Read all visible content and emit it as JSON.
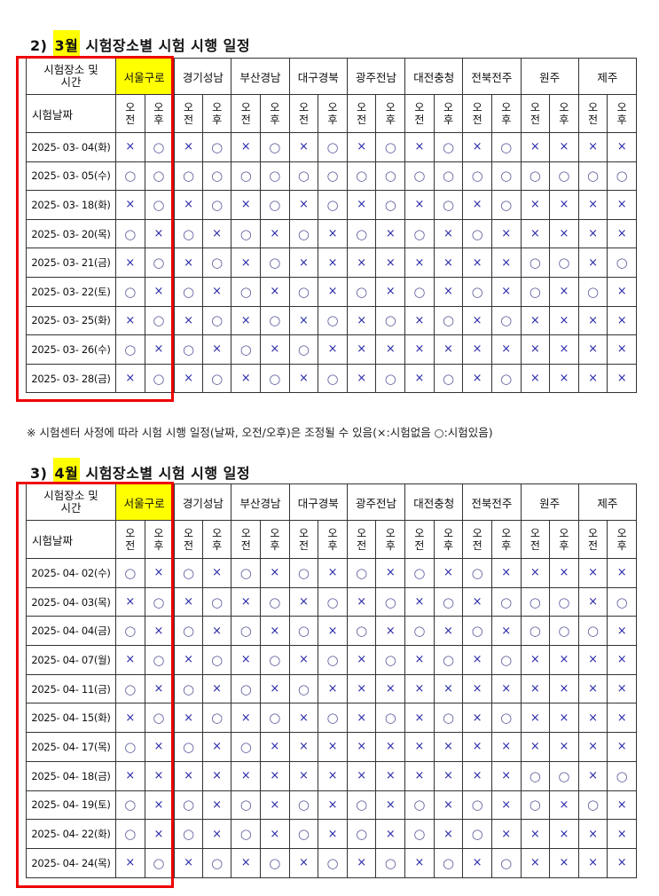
{
  "sections": [
    {
      "title_num": "2)",
      "title_month": "3월",
      "title_rest": "시험장소별 시험 시행 일정",
      "corner_top": "시험장소 및 시간",
      "corner_bottom": "시험날짜",
      "regions": [
        "서울구로",
        "경기성남",
        "부산경남",
        "대구경북",
        "광주전남",
        "대전충청",
        "전북전주",
        "원주",
        "제주"
      ],
      "ampm": [
        "오\n전",
        "오\n후"
      ],
      "rows": [
        {
          "date": "2025- 03- 04(화)",
          "cells": [
            "×",
            "○",
            "×",
            "○",
            "×",
            "○",
            "×",
            "○",
            "×",
            "○",
            "×",
            "○",
            "×",
            "○",
            "×",
            "×",
            "×",
            "×"
          ]
        },
        {
          "date": "2025- 03- 05(수)",
          "cells": [
            "○",
            "○",
            "○",
            "○",
            "○",
            "○",
            "○",
            "○",
            "○",
            "○",
            "○",
            "○",
            "○",
            "○",
            "○",
            "○",
            "○",
            "○"
          ]
        },
        {
          "date": "2025- 03- 18(화)",
          "cells": [
            "×",
            "○",
            "×",
            "○",
            "×",
            "○",
            "×",
            "○",
            "×",
            "○",
            "×",
            "○",
            "×",
            "○",
            "×",
            "×",
            "×",
            "×"
          ]
        },
        {
          "date": "2025- 03- 20(목)",
          "cells": [
            "○",
            "×",
            "○",
            "×",
            "○",
            "×",
            "○",
            "×",
            "○",
            "×",
            "○",
            "×",
            "○",
            "×",
            "×",
            "×",
            "×",
            "×"
          ]
        },
        {
          "date": "2025- 03- 21(금)",
          "cells": [
            "×",
            "○",
            "×",
            "○",
            "×",
            "○",
            "×",
            "×",
            "×",
            "×",
            "×",
            "×",
            "×",
            "×",
            "○",
            "○",
            "×",
            "○"
          ]
        },
        {
          "date": "2025- 03- 22(토)",
          "cells": [
            "○",
            "×",
            "○",
            "×",
            "○",
            "×",
            "○",
            "×",
            "○",
            "×",
            "○",
            "×",
            "○",
            "×",
            "○",
            "×",
            "○",
            "×"
          ]
        },
        {
          "date": "2025- 03- 25(화)",
          "cells": [
            "×",
            "○",
            "×",
            "○",
            "×",
            "○",
            "×",
            "○",
            "×",
            "○",
            "×",
            "○",
            "×",
            "○",
            "×",
            "×",
            "×",
            "×"
          ]
        },
        {
          "date": "2025- 03- 26(수)",
          "cells": [
            "○",
            "×",
            "○",
            "×",
            "○",
            "×",
            "○",
            "×",
            "×",
            "×",
            "×",
            "×",
            "×",
            "×",
            "×",
            "×",
            "×",
            "×"
          ]
        },
        {
          "date": "2025- 03- 28(금)",
          "cells": [
            "×",
            "○",
            "×",
            "○",
            "×",
            "○",
            "×",
            "○",
            "×",
            "○",
            "×",
            "○",
            "×",
            "○",
            "×",
            "×",
            "×",
            "×"
          ]
        }
      ]
    },
    {
      "title_num": "3)",
      "title_month": "4월",
      "title_rest": "시험장소별 시험 시행 일정",
      "corner_top": "시험장소 및 시간",
      "corner_bottom": "시험날짜",
      "regions": [
        "서울구로",
        "경기성남",
        "부산경남",
        "대구경북",
        "광주전남",
        "대전충청",
        "전북전주",
        "원주",
        "제주"
      ],
      "ampm": [
        "오\n전",
        "오\n후"
      ],
      "rows": [
        {
          "date": "2025- 04- 02(수)",
          "cells": [
            "○",
            "×",
            "○",
            "×",
            "○",
            "×",
            "○",
            "×",
            "○",
            "×",
            "○",
            "×",
            "○",
            "×",
            "×",
            "×",
            "×",
            "×"
          ]
        },
        {
          "date": "2025- 04- 03(목)",
          "cells": [
            "×",
            "○",
            "×",
            "○",
            "×",
            "○",
            "×",
            "○",
            "×",
            "○",
            "×",
            "○",
            "×",
            "○",
            "○",
            "○",
            "×",
            "○"
          ]
        },
        {
          "date": "2025- 04- 04(금)",
          "cells": [
            "○",
            "×",
            "○",
            "×",
            "○",
            "×",
            "○",
            "×",
            "○",
            "×",
            "○",
            "×",
            "○",
            "×",
            "○",
            "○",
            "○",
            "×"
          ]
        },
        {
          "date": "2025- 04- 07(월)",
          "cells": [
            "×",
            "○",
            "×",
            "○",
            "×",
            "○",
            "×",
            "○",
            "×",
            "○",
            "×",
            "○",
            "×",
            "○",
            "×",
            "×",
            "×",
            "×"
          ]
        },
        {
          "date": "2025- 04- 11(금)",
          "cells": [
            "○",
            "×",
            "○",
            "×",
            "○",
            "×",
            "○",
            "×",
            "×",
            "×",
            "×",
            "×",
            "×",
            "×",
            "×",
            "×",
            "×",
            "×"
          ]
        },
        {
          "date": "2025- 04- 15(화)",
          "cells": [
            "×",
            "○",
            "×",
            "○",
            "×",
            "○",
            "×",
            "○",
            "×",
            "○",
            "×",
            "○",
            "×",
            "○",
            "×",
            "×",
            "×",
            "×"
          ]
        },
        {
          "date": "2025- 04- 17(목)",
          "cells": [
            "○",
            "×",
            "○",
            "×",
            "○",
            "×",
            "×",
            "×",
            "×",
            "×",
            "×",
            "×",
            "×",
            "×",
            "×",
            "×",
            "×",
            "×"
          ]
        },
        {
          "date": "2025- 04- 18(금)",
          "cells": [
            "×",
            "×",
            "×",
            "×",
            "×",
            "×",
            "×",
            "×",
            "×",
            "×",
            "×",
            "×",
            "×",
            "×",
            "○",
            "○",
            "×",
            "○"
          ]
        },
        {
          "date": "2025- 04- 19(토)",
          "cells": [
            "○",
            "×",
            "○",
            "×",
            "○",
            "×",
            "○",
            "×",
            "○",
            "×",
            "○",
            "×",
            "○",
            "×",
            "○",
            "×",
            "○",
            "×"
          ]
        },
        {
          "date": "2025- 04- 22(화)",
          "cells": [
            "○",
            "×",
            "○",
            "×",
            "○",
            "×",
            "○",
            "×",
            "○",
            "×",
            "○",
            "×",
            "○",
            "×",
            "×",
            "×",
            "×",
            "×"
          ]
        },
        {
          "date": "2025- 04- 24(목)",
          "cells": [
            "×",
            "○",
            "×",
            "○",
            "×",
            "○",
            "×",
            "○",
            "×",
            "○",
            "×",
            "○",
            "×",
            "○",
            "×",
            "×",
            "×",
            "×"
          ]
        }
      ]
    }
  ],
  "note": "※ 시험센터 사정에 따라 시험 시행 일정(날짜, 오전/오후)은 조정될 수 있음(×:시험없음 ○:시험있음)",
  "colors": {
    "highlight": "#ffff00",
    "red_box": "#e00000",
    "mark": "#2a2aa8"
  }
}
